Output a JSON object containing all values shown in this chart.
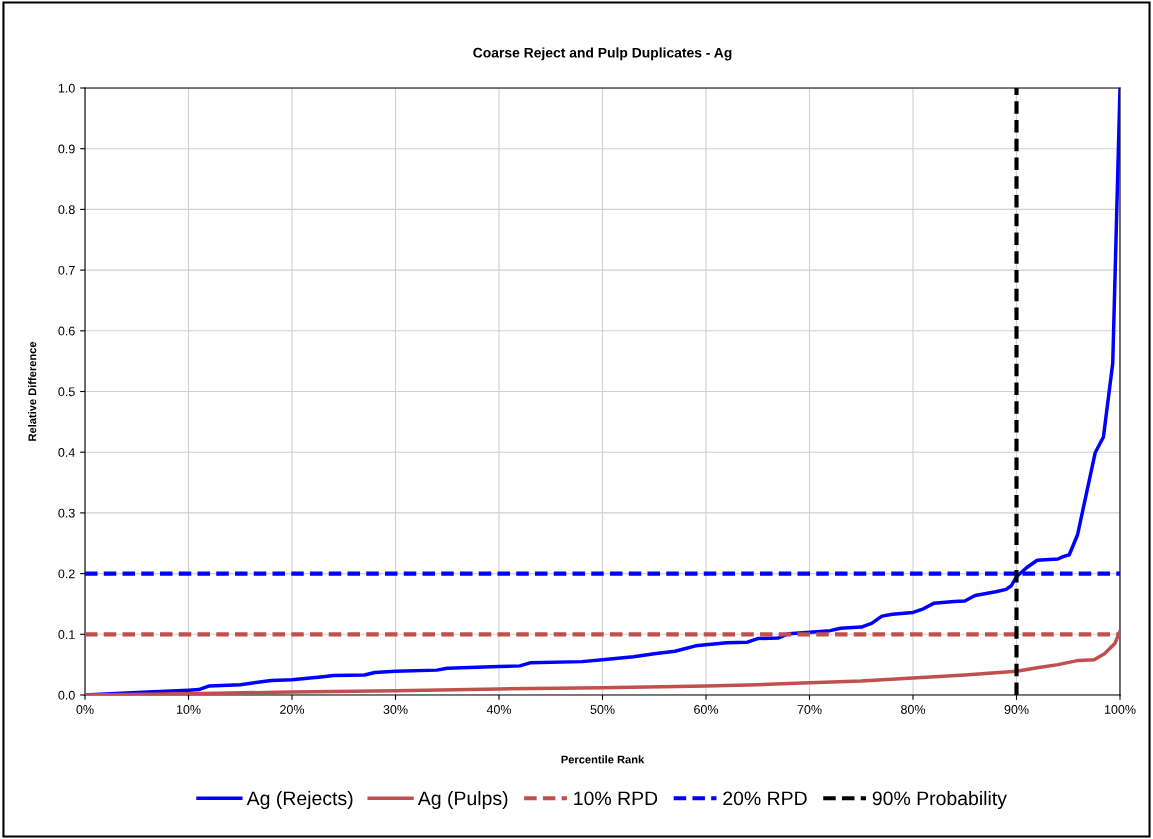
{
  "chart_data": {
    "type": "line",
    "title": "Coarse Reject and Pulp Duplicates - Ag",
    "xlabel": "Percentile Rank",
    "ylabel": "Relative Difference",
    "xlim": [
      0,
      1
    ],
    "ylim": [
      0,
      1
    ],
    "xticks": [
      {
        "value": 0,
        "label": "0%"
      },
      {
        "value": 0.1,
        "label": "10%"
      },
      {
        "value": 0.2,
        "label": "20%"
      },
      {
        "value": 0.3,
        "label": "30%"
      },
      {
        "value": 0.4,
        "label": "40%"
      },
      {
        "value": 0.5,
        "label": "50%"
      },
      {
        "value": 0.6,
        "label": "60%"
      },
      {
        "value": 0.7,
        "label": "70%"
      },
      {
        "value": 0.8,
        "label": "80%"
      },
      {
        "value": 0.9,
        "label": "90%"
      },
      {
        "value": 1,
        "label": "100%"
      }
    ],
    "yticks": [
      {
        "value": 0,
        "label": "0.0"
      },
      {
        "value": 0.1,
        "label": "0.1"
      },
      {
        "value": 0.2,
        "label": "0.2"
      },
      {
        "value": 0.3,
        "label": "0.3"
      },
      {
        "value": 0.4,
        "label": "0.4"
      },
      {
        "value": 0.5,
        "label": "0.5"
      },
      {
        "value": 0.6,
        "label": "0.6"
      },
      {
        "value": 0.7,
        "label": "0.7"
      },
      {
        "value": 0.8,
        "label": "0.8"
      },
      {
        "value": 0.9,
        "label": "0.9"
      },
      {
        "value": 1,
        "label": "1.0"
      }
    ],
    "grid": true,
    "legend": "bottom",
    "marker": "none",
    "line_style": "solid",
    "series": [
      {
        "name": "Ag (Rejects)",
        "color": "#0000ff",
        "x": [
          0,
          0.05,
          0.1,
          0.11,
          0.12,
          0.15,
          0.18,
          0.2,
          0.23,
          0.24,
          0.27,
          0.28,
          0.3,
          0.34,
          0.35,
          0.4,
          0.42,
          0.43,
          0.48,
          0.5,
          0.53,
          0.55,
          0.57,
          0.59,
          0.62,
          0.64,
          0.65,
          0.67,
          0.68,
          0.72,
          0.73,
          0.75,
          0.76,
          0.77,
          0.78,
          0.8,
          0.81,
          0.82,
          0.84,
          0.85,
          0.86,
          0.88,
          0.89,
          0.895,
          0.9,
          0.91,
          0.92,
          0.94,
          0.945,
          0.951,
          0.959,
          0.976,
          0.984,
          0.993,
          1.0
        ],
        "values": [
          0,
          0.004,
          0.008,
          0.009,
          0.015,
          0.017,
          0.024,
          0.025,
          0.03,
          0.032,
          0.033,
          0.037,
          0.039,
          0.041,
          0.044,
          0.047,
          0.048,
          0.053,
          0.055,
          0.058,
          0.063,
          0.068,
          0.072,
          0.081,
          0.086,
          0.087,
          0.093,
          0.094,
          0.101,
          0.106,
          0.11,
          0.112,
          0.118,
          0.13,
          0.133,
          0.136,
          0.142,
          0.151,
          0.154,
          0.155,
          0.164,
          0.17,
          0.174,
          0.18,
          0.195,
          0.21,
          0.222,
          0.224,
          0.228,
          0.231,
          0.264,
          0.399,
          0.425,
          0.547,
          1.0
        ]
      },
      {
        "name": "Ag (Pulps)",
        "color": "#c0504d",
        "x": [
          0,
          0.1,
          0.2,
          0.3,
          0.4,
          0.5,
          0.6,
          0.65,
          0.7,
          0.75,
          0.8,
          0.85,
          0.9,
          0.92,
          0.94,
          0.96,
          0.975,
          0.985,
          0.995,
          1.0
        ],
        "values": [
          0,
          0.002,
          0.005,
          0.007,
          0.01,
          0.012,
          0.015,
          0.017,
          0.02,
          0.023,
          0.028,
          0.033,
          0.039,
          0.045,
          0.05,
          0.057,
          0.058,
          0.068,
          0.085,
          0.105
        ]
      }
    ],
    "ref_lines": [
      {
        "axis": "y",
        "value": 0.1,
        "label": "10% RPD",
        "color": "#c0504d",
        "line_style": "dashed"
      },
      {
        "axis": "y",
        "value": 0.2,
        "label": "20% RPD",
        "color": "#0000ff",
        "line_style": "dashed"
      },
      {
        "axis": "x",
        "value": 0.9,
        "label": "90% Probability",
        "color": "#000000",
        "line_style": "dashed"
      }
    ]
  }
}
